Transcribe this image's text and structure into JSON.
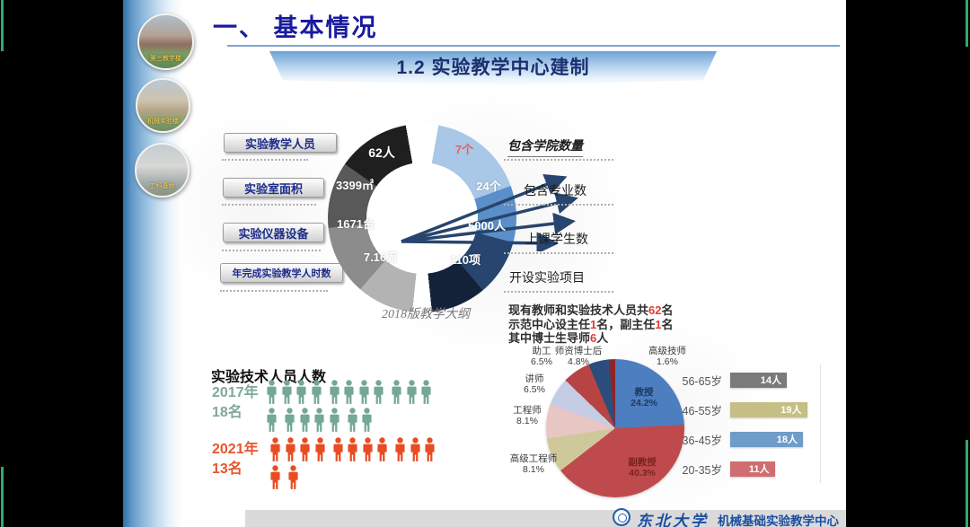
{
  "screen": {
    "accent_green": "#32a86c",
    "background": "#000000"
  },
  "slide": {
    "title": "一、 基本情况",
    "subtitle": "1.2 实验教学中心建制",
    "side_photos": [
      {
        "caption": "第三教学楼"
      },
      {
        "caption": "机械实验楼"
      },
      {
        "caption": "工科基地"
      }
    ],
    "left_buttons": [
      {
        "label": "实验教学人员"
      },
      {
        "label": "实验室面积"
      },
      {
        "label": "实验仪器设备"
      },
      {
        "label": "年完成实验教学人时数"
      }
    ],
    "hub": {
      "left_values": [
        "62人",
        "3399㎡",
        "1671台",
        "7.16万"
      ],
      "left_colors": [
        "#1f1f1f",
        "#595959",
        "#8c8c8c",
        "#b3b3b3"
      ],
      "right_values": [
        "7个",
        "24个",
        "5000人",
        "110项"
      ],
      "right_colors": [
        "#a9c7e6",
        "#5b8fc9",
        "#27456e",
        "#132238"
      ],
      "right_labels": [
        "包含学院数量",
        "包含专业数",
        "上课学生数",
        "开设实验项目"
      ],
      "note": "2018版教学大纲"
    },
    "staff_note": {
      "line1": [
        "现有教师和实验技术人员共",
        "62",
        "名"
      ],
      "line2": [
        "示范中心设主任",
        "1",
        "名，副主任",
        "1",
        "名"
      ],
      "line3": [
        "其中博士生导师",
        "6",
        "人"
      ]
    },
    "pictogram": {
      "title": "实验技术人员人数",
      "rows": [
        {
          "year": "2017年",
          "count_label": "18名",
          "count": 18,
          "color": "#74a795"
        },
        {
          "year": "2021年",
          "count_label": "13名",
          "count": 13,
          "color": "#e84c22"
        }
      ]
    },
    "footer": {
      "university": "东北大学",
      "center_name": "机械基础实验教学中心"
    }
  },
  "chart_data": [
    {
      "type": "pie",
      "title": "",
      "slices": [
        {
          "label": "教授",
          "value": 24.2,
          "color": "#4d7ebf"
        },
        {
          "label": "副教授",
          "value": 40.3,
          "color": "#bf4a4d"
        },
        {
          "label": "高级工程师",
          "value": 8.1,
          "color": "#cfc89a"
        },
        {
          "label": "工程师",
          "value": 8.1,
          "color": "#e7c6c4"
        },
        {
          "label": "讲师",
          "value": 6.5,
          "color": "#c4cde4"
        },
        {
          "label": "助工",
          "value": 6.5,
          "color": "#b84343"
        },
        {
          "label": "师资博士后",
          "value": 4.8,
          "color": "#2b4d7e"
        },
        {
          "label": "高级技师",
          "value": 1.6,
          "color": "#8c2626"
        }
      ]
    },
    {
      "type": "bar",
      "orientation": "horizontal",
      "categories": [
        "56-65岁",
        "46-55岁",
        "36-45岁",
        "20-35岁"
      ],
      "values": [
        14,
        19,
        18,
        11
      ],
      "unit": "人",
      "colors": [
        "#7a7a7a",
        "#c5bf85",
        "#6f9cc9",
        "#cf6d70"
      ],
      "legend": "none",
      "grid": "right-edge-only"
    }
  ]
}
